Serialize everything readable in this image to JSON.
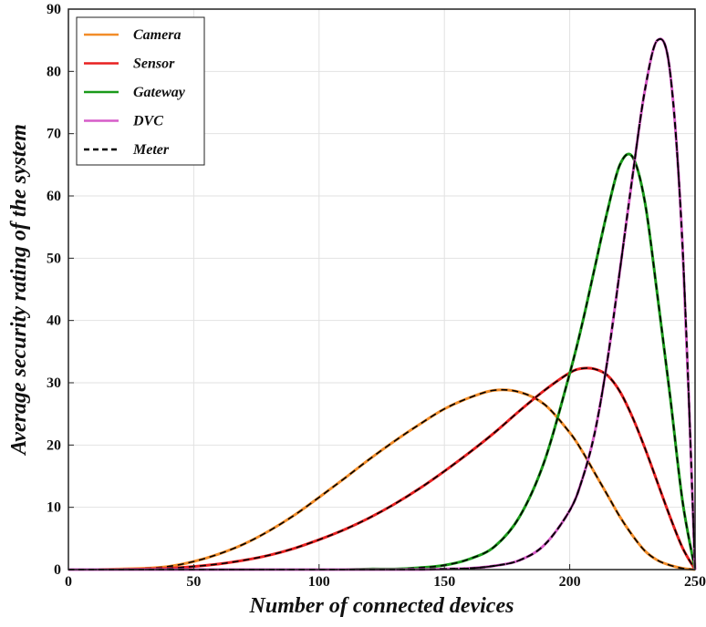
{
  "chart_data": {
    "type": "line",
    "title": "",
    "xlabel": "Number of connected devices",
    "ylabel": "Average security rating of the system",
    "xlim": [
      0,
      250
    ],
    "ylim": [
      0,
      90
    ],
    "xticks": [
      0,
      50,
      100,
      150,
      200,
      250
    ],
    "yticks": [
      0,
      10,
      20,
      30,
      40,
      50,
      60,
      70,
      80,
      90
    ],
    "grid": true,
    "legend_position": "top-left",
    "x": [
      0,
      10,
      20,
      30,
      40,
      50,
      60,
      70,
      80,
      90,
      100,
      110,
      120,
      130,
      140,
      150,
      160,
      170,
      180,
      190,
      200,
      205,
      210,
      215,
      220,
      225,
      230,
      235,
      240,
      245,
      250
    ],
    "series": [
      {
        "name": "Camera",
        "color": "#f28c28",
        "dash": "solid",
        "values": [
          0,
          0,
          0.1,
          0.2,
          0.5,
          1.3,
          2.5,
          4.1,
          6.2,
          8.7,
          11.6,
          14.6,
          17.7,
          20.6,
          23.3,
          25.8,
          27.6,
          28.8,
          28.5,
          26.5,
          22.0,
          19.0,
          15.5,
          12.0,
          8.5,
          5.5,
          3.0,
          1.5,
          0.7,
          0.2,
          0
        ]
      },
      {
        "name": "Sensor",
        "color": "#e82020",
        "dash": "solid",
        "values": [
          0,
          0,
          0,
          0.1,
          0.2,
          0.5,
          0.9,
          1.5,
          2.3,
          3.4,
          4.8,
          6.4,
          8.3,
          10.5,
          13.0,
          15.8,
          18.8,
          22.0,
          25.5,
          28.8,
          31.6,
          32.3,
          32.2,
          31.2,
          28.6,
          24.5,
          19.5,
          14.0,
          8.5,
          3.5,
          0
        ]
      },
      {
        "name": "Gateway",
        "color": "#1a9a1a",
        "dash": "solid",
        "values": [
          0,
          0,
          0,
          0,
          0,
          0,
          0,
          0,
          0,
          0,
          0,
          0,
          0.1,
          0.1,
          0.3,
          0.7,
          1.7,
          3.7,
          8.5,
          17.5,
          31.5,
          39.5,
          48.5,
          57.5,
          65.0,
          66.3,
          59.0,
          44.0,
          28.0,
          11.0,
          0
        ]
      },
      {
        "name": "DVC",
        "color": "#d65cc8",
        "dash": "solid",
        "values": [
          0,
          0,
          0,
          0,
          0,
          0,
          0,
          0,
          0,
          0,
          0,
          0,
          0,
          0,
          0,
          0.1,
          0.2,
          0.6,
          1.5,
          4.0,
          9.5,
          14.5,
          22.0,
          33.5,
          48.0,
          63.0,
          77.0,
          85.0,
          80.0,
          52.0,
          0
        ]
      },
      {
        "name": "Meter",
        "color": "#000000",
        "dash": "dashed",
        "values": [
          0,
          0,
          0,
          0,
          0,
          0,
          0,
          0,
          0,
          0,
          0,
          0,
          0,
          0,
          0,
          0.1,
          0.2,
          0.6,
          1.5,
          4.0,
          9.5,
          14.5,
          22.0,
          33.5,
          48.0,
          63.0,
          77.0,
          85.0,
          80.0,
          52.0,
          0
        ]
      }
    ]
  }
}
